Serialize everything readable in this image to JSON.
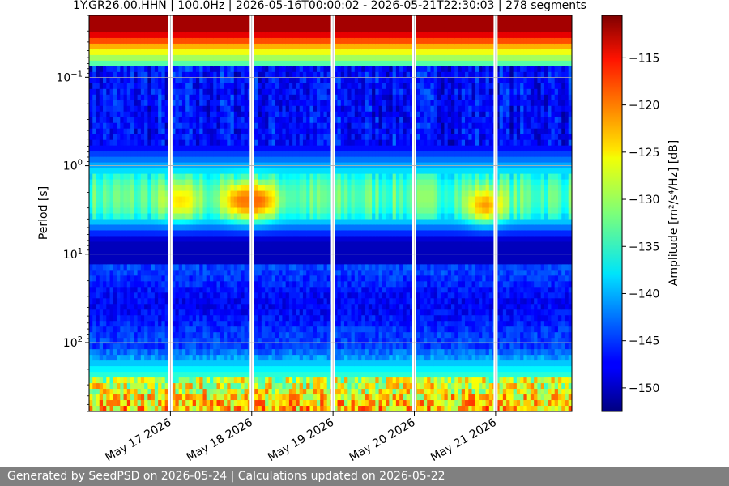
{
  "chart_data": {
    "type": "heatmap",
    "title": "1Y.GR26.00.HHN | 100.0Hz | 2026-05-16T00:00:02 - 2026-05-21T22:30:03 | 278 segments",
    "xlabel": "",
    "ylabel": "Period [s]",
    "x_range": [
      "2026-05-16T00:00:02",
      "2026-05-21T22:30:03"
    ],
    "x_ticks": [
      {
        "date": "2026-05-17",
        "label": "May 17 2026"
      },
      {
        "date": "2026-05-18",
        "label": "May 18 2026"
      },
      {
        "date": "2026-05-19",
        "label": "May 19 2026"
      },
      {
        "date": "2026-05-20",
        "label": "May 20 2026"
      },
      {
        "date": "2026-05-21",
        "label": "May 21 2026"
      }
    ],
    "y_scale": "log",
    "y_inverted": true,
    "y_range": [
      0.02,
      600
    ],
    "y_ticks": [
      {
        "value": 0.1,
        "base": "10",
        "exp": "−1"
      },
      {
        "value": 1,
        "base": "10",
        "exp": "0"
      },
      {
        "value": 10,
        "base": "10",
        "exp": "1"
      },
      {
        "value": 100,
        "base": "10",
        "exp": "2"
      }
    ],
    "grid": true,
    "colormap": "jet",
    "colorbar": {
      "label": "Amplitude [m²/s⁴/Hz] [dB]",
      "range": [
        -152.5,
        -110.5
      ],
      "ticks": [
        -115,
        -120,
        -125,
        -130,
        -135,
        -140,
        -145,
        -150
      ],
      "tick_labels": [
        "−115",
        "−120",
        "−125",
        "−130",
        "−135",
        "−140",
        "−145",
        "−150"
      ]
    },
    "data_gaps": [
      "2026-05-17T00:00",
      "2026-05-18T00:00",
      "2026-05-19T00:00",
      "2026-05-20T00:00",
      "2026-05-21T00:00"
    ],
    "features": [
      {
        "band": "period < 0.03 s",
        "amplitude_db": -112
      },
      {
        "band": "0.03 - 0.05 s",
        "amplitude_db": -125
      },
      {
        "band": "0.05 - 1 s",
        "amplitude_db": -148
      },
      {
        "band": "1.5 - 5 s (microseism)",
        "amplitude_db": -133
      },
      {
        "band": "7 - 12 s",
        "amplitude_db": -150
      },
      {
        "band": "15 - 100 s",
        "amplitude_db": -146
      },
      {
        "band": "200 - 600 s",
        "amplitude_db": -128
      }
    ],
    "microseism_peaks": [
      {
        "time": "2026-05-17T03:00",
        "period": 2.5,
        "amplitude_db": -125
      },
      {
        "time": "2026-05-17T21:00",
        "period": 2.5,
        "amplitude_db": -121
      },
      {
        "time": "2026-05-18T02:00",
        "period": 2.5,
        "amplitude_db": -120
      },
      {
        "time": "2026-05-20T21:00",
        "period": 2.8,
        "amplitude_db": -122
      }
    ]
  },
  "footer": {
    "text": "Generated by SeedPSD on 2026-05-24 | Calculations updated on 2026-05-22"
  }
}
